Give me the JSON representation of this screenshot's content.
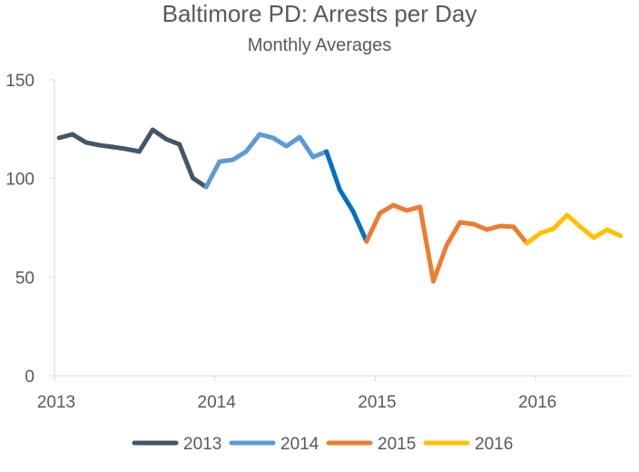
{
  "chart_data": {
    "type": "line",
    "title": "Baltimore PD: Arrests per Day",
    "subtitle": "Monthly Averages",
    "xlabel": "",
    "ylabel": "",
    "ylim": [
      0,
      150
    ],
    "yticks": [
      "0",
      "50",
      "100",
      "150"
    ],
    "xticks": [
      "2013",
      "2014",
      "2015",
      "2016"
    ],
    "grid": false,
    "legend_position": "bottom",
    "highlight": {
      "from_month_index": 20,
      "to_month_index": 23,
      "color": "#0070c0"
    },
    "series": [
      {
        "name": "2013",
        "color": "#44546a",
        "values": [
          120.6,
          122.4,
          118.3,
          116.9,
          116,
          115,
          113.7,
          124.7,
          120,
          117.3,
          100.3,
          95.7
        ]
      },
      {
        "name": "2014",
        "color": "#5b9bd5",
        "values": [
          108.6,
          109.5,
          113.7,
          122.4,
          120.6,
          116.4,
          121,
          110.9,
          113.7,
          94.3,
          83.3,
          68.1
        ]
      },
      {
        "name": "2015",
        "color": "#ed7d31",
        "values": [
          82.4,
          86.5,
          83.8,
          85.6,
          47.9,
          66.3,
          77.8,
          76.9,
          74.1,
          75.9,
          75.5,
          67.2
        ]
      },
      {
        "name": "2016",
        "color": "#ffc000",
        "values": [
          72.3,
          74.6,
          81.5,
          75.5,
          70,
          74.1,
          70.9
        ]
      }
    ]
  }
}
